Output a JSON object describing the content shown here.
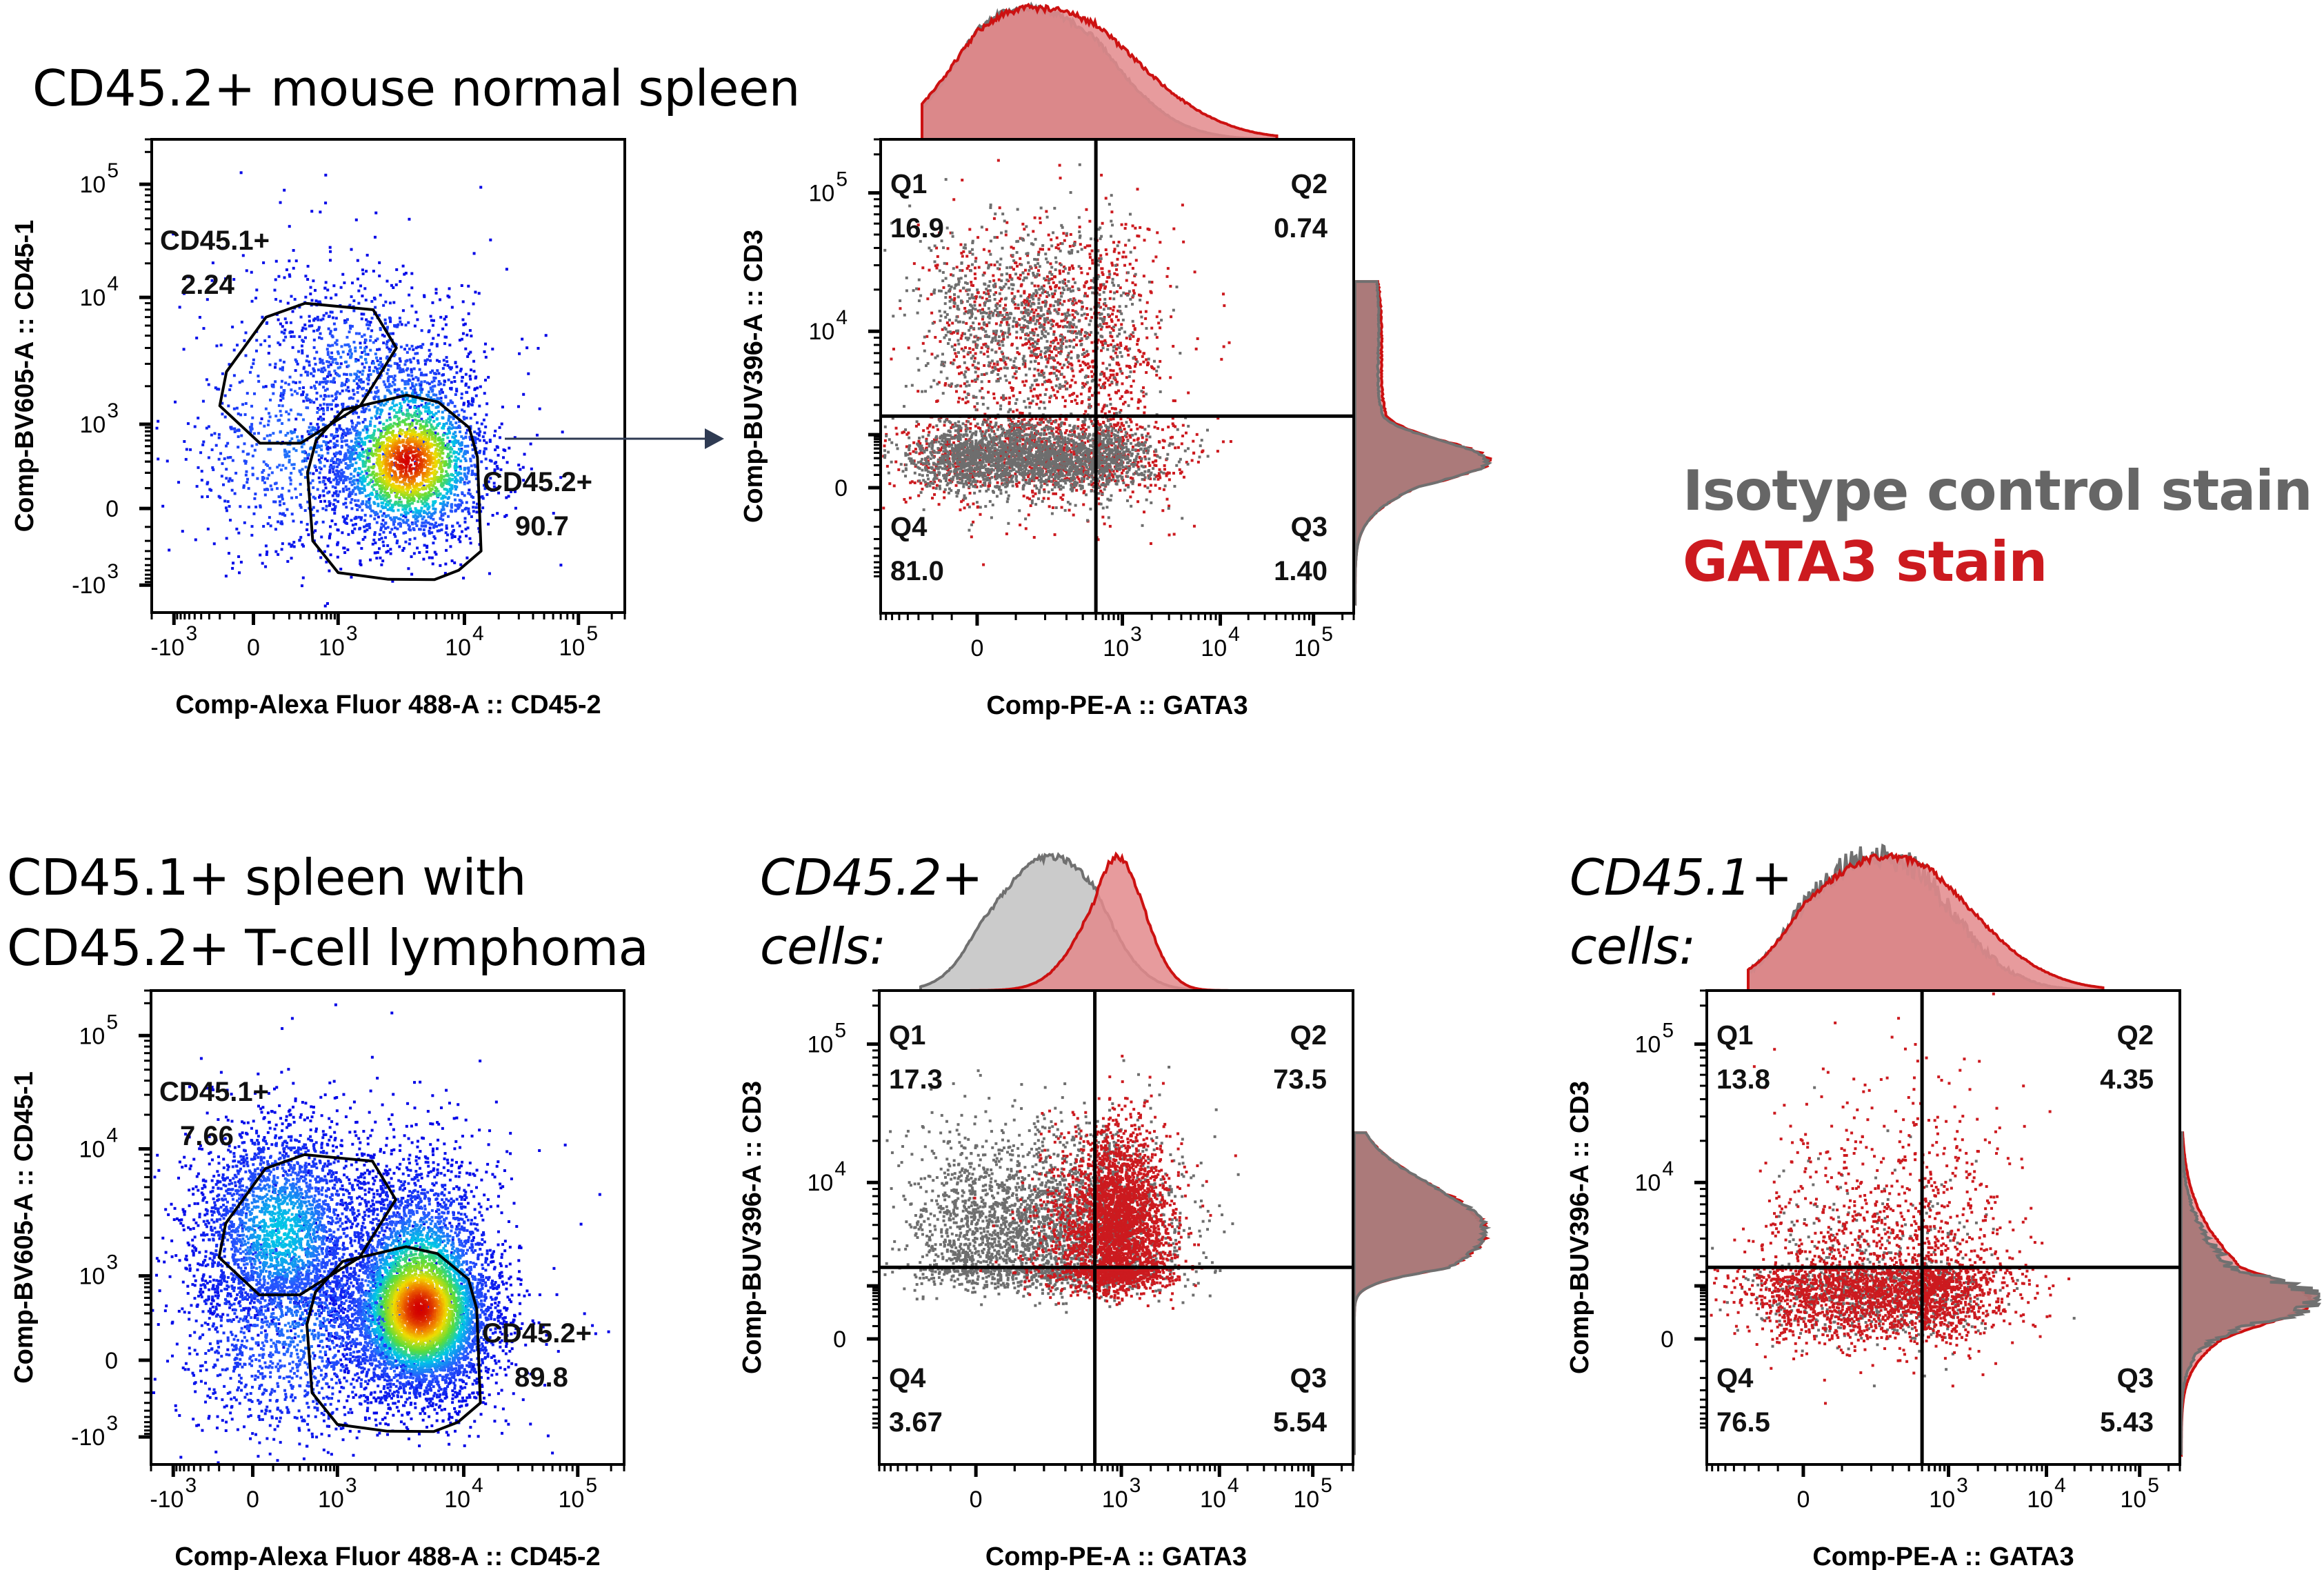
{
  "figure": {
    "colors": {
      "isotype": "#6e6e6e",
      "gata3": "#cc1a1f",
      "overlap_fill": "#a87878",
      "gata3_fill": "#e38a8c",
      "isotype_fill": "#c2c2c2",
      "gate_line": "#000000",
      "arrow": "#2e3a52"
    },
    "legend": [
      {
        "label": "Isotype control stain",
        "color": "#666666"
      },
      {
        "label": "GATA3 stain",
        "color": "#cc1a1f"
      }
    ],
    "row_titles": {
      "top": "CD45.2+ mouse normal spleen",
      "bottom_line1": "CD45.1+ spleen with",
      "bottom_line2": "CD45.2+ T-cell lymphoma"
    },
    "subset_titles": [
      {
        "line1": "CD45.2+",
        "line2": "cells:"
      },
      {
        "line1": "CD45.1+",
        "line2": "cells:"
      }
    ]
  },
  "chart_data": [
    {
      "id": "p1",
      "type": "scatter",
      "subtype": "density-dot-plot",
      "title": "CD45.2+ mouse normal spleen",
      "xlabel": "Comp-Alexa Fluor 488-A :: CD45-2",
      "ylabel": "Comp-BV605-A :: CD45-1",
      "x_scale": "biexponential",
      "y_scale": "biexponential",
      "xticks": [
        {
          "v": -1000,
          "base": "-10",
          "exp": "3"
        },
        {
          "v": 0,
          "base": "0",
          "exp": ""
        },
        {
          "v": 1000,
          "base": "10",
          "exp": "3"
        },
        {
          "v": 10000,
          "base": "10",
          "exp": "4"
        },
        {
          "v": 100000,
          "base": "10",
          "exp": "5"
        }
      ],
      "yticks": [
        {
          "v": 100000,
          "base": "10",
          "exp": "5"
        },
        {
          "v": 10000,
          "base": "10",
          "exp": "4"
        },
        {
          "v": 1000,
          "base": "10",
          "exp": "3"
        },
        {
          "v": 0,
          "base": "0",
          "exp": ""
        },
        {
          "v": -1000,
          "base": "-10",
          "exp": "3"
        }
      ],
      "gates": [
        {
          "name": "CD45.1+",
          "percent": "2.24",
          "label": "CD45.1+",
          "polygon": [
            [
              60,
              7000
            ],
            [
              350,
              9000
            ],
            [
              1900,
              8000
            ],
            [
              2900,
              4000
            ],
            [
              1500,
              1400
            ],
            [
              300,
              550
            ],
            [
              30,
              550
            ],
            [
              -200,
              1400
            ],
            [
              -150,
              2600
            ]
          ]
        },
        {
          "name": "CD45.2+",
          "percent": "90.7",
          "label": "CD45.2+",
          "polygon": [
            [
              1100,
              1300
            ],
            [
              3500,
              1700
            ],
            [
              6200,
              1500
            ],
            [
              11000,
              900
            ],
            [
              13000,
              350
            ],
            [
              14000,
              -300
            ],
            [
              9000,
              -600
            ],
            [
              5800,
              -830
            ],
            [
              2500,
              -820
            ],
            [
              1000,
              -650
            ],
            [
              450,
              -200
            ],
            [
              380,
              200
            ],
            [
              500,
              600
            ]
          ]
        }
      ],
      "populations": [
        {
          "n": 2600,
          "cx": 3600,
          "cy": 300,
          "sx": 0.32,
          "sy": 0.55,
          "palette": "density"
        },
        {
          "n": 900,
          "cx": 300,
          "cy": 500,
          "sx": 0.9,
          "sy": 0.8,
          "palette": "density-low"
        },
        {
          "n": 500,
          "cx": 1500,
          "cy": 3000,
          "sx": 0.45,
          "sy": 0.35,
          "palette": "density-low"
        }
      ],
      "arrow_to": "p2"
    },
    {
      "id": "p2",
      "type": "scatter",
      "subtype": "quadrant-overlay",
      "xlabel": "Comp-PE-A :: GATA3",
      "ylabel": "Comp-BUV396-A :: CD3",
      "x_scale": "biexponential",
      "y_scale": "biexponential",
      "xticks": [
        {
          "v": 0,
          "base": "0",
          "exp": ""
        },
        {
          "v": 1000,
          "base": "10",
          "exp": "3"
        },
        {
          "v": 10000,
          "base": "10",
          "exp": "4"
        },
        {
          "v": 100000,
          "base": "10",
          "exp": "5"
        }
      ],
      "yticks": [
        {
          "v": 100000,
          "base": "10",
          "exp": "5"
        },
        {
          "v": 10000,
          "base": "10",
          "exp": "4"
        },
        {
          "v": 0,
          "base": "0",
          "exp": ""
        }
      ],
      "quadrant_threshold": {
        "x": 500,
        "y": 2500
      },
      "quadrants": [
        {
          "name": "Q1",
          "value": "16.9"
        },
        {
          "name": "Q2",
          "value": "0.74"
        },
        {
          "name": "Q3",
          "value": "1.40"
        },
        {
          "name": "Q4",
          "value": "81.0"
        }
      ],
      "series": [
        {
          "name": "Isotype control stain",
          "color": "#6e6e6e",
          "populations": [
            {
              "n": 2400,
              "cx": 150,
              "cy": 300,
              "sx": 0.5,
              "sy": 0.35
            },
            {
              "n": 900,
              "cx": 140,
              "cy": 12000,
              "sx": 0.45,
              "sy": 0.35
            }
          ]
        },
        {
          "name": "GATA3 stain",
          "color": "#cc1a1f",
          "populations": [
            {
              "n": 1100,
              "cx": 190,
              "cy": 320,
              "sx": 0.6,
              "sy": 0.45
            },
            {
              "n": 1100,
              "cx": 260,
              "cy": 9000,
              "sx": 0.5,
              "sy": 0.45
            }
          ]
        }
      ],
      "hist_top": [
        {
          "series": "Isotype control stain",
          "peak_x": 130,
          "width": 0.55,
          "skew": 0.15
        },
        {
          "series": "GATA3 stain",
          "peak_x": 150,
          "width": 0.6,
          "skew": 0.3
        }
      ],
      "hist_right": [
        {
          "series": "Isotype control stain",
          "peak_y": 250,
          "width": 0.45,
          "secondary": {
            "y": 12000,
            "ratio": 0.18
          }
        },
        {
          "series": "GATA3 stain",
          "peak_y": 250,
          "width": 0.45,
          "secondary": {
            "y": 10000,
            "ratio": 0.2
          }
        }
      ]
    },
    {
      "id": "p4",
      "type": "scatter",
      "subtype": "density-dot-plot",
      "title": "CD45.1+ spleen with CD45.2+ T-cell lymphoma",
      "xlabel": "Comp-Alexa Fluor 488-A :: CD45-2",
      "ylabel": "Comp-BV605-A :: CD45-1",
      "x_scale": "biexponential",
      "y_scale": "biexponential",
      "xticks": [
        {
          "v": -1000,
          "base": "-10",
          "exp": "3"
        },
        {
          "v": 0,
          "base": "0",
          "exp": ""
        },
        {
          "v": 1000,
          "base": "10",
          "exp": "3"
        },
        {
          "v": 10000,
          "base": "10",
          "exp": "4"
        },
        {
          "v": 100000,
          "base": "10",
          "exp": "5"
        }
      ],
      "yticks": [
        {
          "v": 100000,
          "base": "10",
          "exp": "5"
        },
        {
          "v": 10000,
          "base": "10",
          "exp": "4"
        },
        {
          "v": 1000,
          "base": "10",
          "exp": "3"
        },
        {
          "v": 0,
          "base": "0",
          "exp": ""
        },
        {
          "v": -1000,
          "base": "-10",
          "exp": "3"
        }
      ],
      "gates": [
        {
          "name": "CD45.1+",
          "percent": "7.66",
          "label": "CD45.1+",
          "polygon": [
            [
              60,
              7000
            ],
            [
              350,
              9000
            ],
            [
              1900,
              8000
            ],
            [
              2900,
              4000
            ],
            [
              1500,
              1400
            ],
            [
              300,
              550
            ],
            [
              30,
              550
            ],
            [
              -200,
              1400
            ],
            [
              -150,
              2600
            ]
          ]
        },
        {
          "name": "CD45.2+",
          "percent": "89.8",
          "label": "CD45.2+",
          "polygon": [
            [
              1100,
              1300
            ],
            [
              3500,
              1700
            ],
            [
              6200,
              1500
            ],
            [
              11000,
              900
            ],
            [
              13000,
              350
            ],
            [
              14000,
              -300
            ],
            [
              9000,
              -600
            ],
            [
              5800,
              -830
            ],
            [
              2500,
              -820
            ],
            [
              1000,
              -650
            ],
            [
              450,
              -200
            ],
            [
              380,
              200
            ],
            [
              500,
              600
            ]
          ]
        }
      ],
      "populations": [
        {
          "n": 6000,
          "cx": 4500,
          "cy": 350,
          "sx": 0.3,
          "sy": 0.6,
          "palette": "density"
        },
        {
          "n": 2600,
          "cx": 150,
          "cy": 2200,
          "sx": 0.6,
          "sy": 0.45,
          "palette": "density-mid"
        },
        {
          "n": 1800,
          "cx": 300,
          "cy": 200,
          "sx": 0.9,
          "sy": 0.9,
          "palette": "density-low"
        }
      ]
    },
    {
      "id": "p5",
      "type": "scatter",
      "subtype": "quadrant-overlay",
      "title": "CD45.2+ cells:",
      "xlabel": "Comp-PE-A :: GATA3",
      "ylabel": "Comp-BUV396-A :: CD3",
      "x_scale": "biexponential",
      "y_scale": "biexponential",
      "xticks": [
        {
          "v": 0,
          "base": "0",
          "exp": ""
        },
        {
          "v": 1000,
          "base": "10",
          "exp": "3"
        },
        {
          "v": 10000,
          "base": "10",
          "exp": "4"
        },
        {
          "v": 100000,
          "base": "10",
          "exp": "5"
        }
      ],
      "yticks": [
        {
          "v": 100000,
          "base": "10",
          "exp": "5"
        },
        {
          "v": 10000,
          "base": "10",
          "exp": "4"
        },
        {
          "v": 0,
          "base": "0",
          "exp": ""
        }
      ],
      "quadrant_threshold": {
        "x": 500,
        "y": 2500
      },
      "quadrants": [
        {
          "name": "Q1",
          "value": "17.3"
        },
        {
          "name": "Q2",
          "value": "73.5"
        },
        {
          "name": "Q3",
          "value": "5.54"
        },
        {
          "name": "Q4",
          "value": "3.67"
        }
      ],
      "series": [
        {
          "name": "Isotype control stain",
          "color": "#6e6e6e",
          "populations": [
            {
              "n": 3200,
              "cx": 230,
              "cy": 4500,
              "sx": 0.55,
              "sy": 0.35
            }
          ]
        },
        {
          "name": "GATA3 stain",
          "color": "#cc1a1f",
          "populations": [
            {
              "n": 3200,
              "cx": 900,
              "cy": 4500,
              "sx": 0.28,
              "sy": 0.35
            }
          ]
        }
      ],
      "hist_top": [
        {
          "series": "Isotype control stain",
          "peak_x": 230,
          "width": 0.42,
          "skew": 0
        },
        {
          "series": "GATA3 stain",
          "peak_x": 900,
          "width": 0.28,
          "skew": 0
        }
      ],
      "hist_right": [
        {
          "series": "Isotype control stain",
          "peak_y": 4500,
          "width": 0.32
        },
        {
          "series": "GATA3 stain",
          "peak_y": 4500,
          "width": 0.32
        }
      ]
    },
    {
      "id": "p6",
      "type": "scatter",
      "subtype": "quadrant-overlay",
      "title": "CD45.1+ cells:",
      "xlabel": "Comp-PE-A :: GATA3",
      "ylabel": "Comp-BUV396-A :: CD3",
      "x_scale": "biexponential",
      "y_scale": "biexponential",
      "xticks": [
        {
          "v": 0,
          "base": "0",
          "exp": ""
        },
        {
          "v": 1000,
          "base": "10",
          "exp": "3"
        },
        {
          "v": 10000,
          "base": "10",
          "exp": "4"
        },
        {
          "v": 100000,
          "base": "10",
          "exp": "5"
        }
      ],
      "yticks": [
        {
          "v": 100000,
          "base": "10",
          "exp": "5"
        },
        {
          "v": 10000,
          "base": "10",
          "exp": "4"
        },
        {
          "v": 0,
          "base": "0",
          "exp": ""
        }
      ],
      "quadrant_threshold": {
        "x": 500,
        "y": 2500
      },
      "quadrants": [
        {
          "name": "Q1",
          "value": "13.8"
        },
        {
          "name": "Q2",
          "value": "4.35"
        },
        {
          "name": "Q3",
          "value": "5.43"
        },
        {
          "name": "Q4",
          "value": "76.5"
        }
      ],
      "series": [
        {
          "name": "Isotype control stain",
          "color": "#6e6e6e",
          "populations": [
            {
              "n": 900,
              "cx": 250,
              "cy": 900,
              "sx": 0.45,
              "sy": 0.5
            }
          ]
        },
        {
          "name": "GATA3 stain",
          "color": "#cc1a1f",
          "populations": [
            {
              "n": 2600,
              "cx": 280,
              "cy": 900,
              "sx": 0.55,
              "sy": 0.55
            },
            {
              "n": 250,
              "cx": 350,
              "cy": 9000,
              "sx": 0.6,
              "sy": 0.6
            }
          ]
        }
      ],
      "hist_top": [
        {
          "series": "Isotype control stain",
          "peak_x": 220,
          "width": 0.55,
          "skew": 0.1,
          "noisy": true
        },
        {
          "series": "GATA3 stain",
          "peak_x": 260,
          "width": 0.6,
          "skew": 0.2
        }
      ],
      "hist_right": [
        {
          "series": "Isotype control stain",
          "peak_y": 500,
          "width": 0.5,
          "noisy": true
        },
        {
          "series": "GATA3 stain",
          "peak_y": 500,
          "width": 0.55
        }
      ]
    }
  ]
}
